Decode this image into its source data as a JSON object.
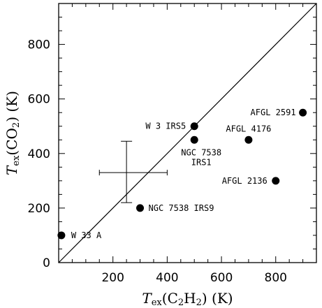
{
  "chart_data": {
    "type": "scatter",
    "xlim": [
      0,
      950
    ],
    "ylim": [
      0,
      950
    ],
    "xticks": [
      200,
      400,
      600,
      800
    ],
    "yticks": [
      0,
      200,
      400,
      600,
      800
    ],
    "xlabel": {
      "italic": "T",
      "sub": "ex",
      "rest": "(C",
      "sub2": "2",
      "mid": "H",
      "sub3": "2",
      "tail": ")  (K)"
    },
    "ylabel": {
      "italic": "T",
      "sub": "ex",
      "rest": "(CO",
      "sub2": "2",
      "tail": ")  (K)"
    },
    "reference_line": {
      "from": [
        0,
        0
      ],
      "to": [
        950,
        950
      ]
    },
    "error_bar": {
      "x": 250,
      "y": 330,
      "xerr": [
        150,
        400
      ],
      "yerr": [
        220,
        445
      ]
    },
    "points": [
      {
        "x": 10,
        "y": 100,
        "label": "W 33 A",
        "label2": ""
      },
      {
        "x": 300,
        "y": 200,
        "label": "NGC 7538 IRS9",
        "label2": ""
      },
      {
        "x": 500,
        "y": 500,
        "label": "W 3 IRS5",
        "label2": ""
      },
      {
        "x": 500,
        "y": 450,
        "label": "NGC 7538",
        "label2": "IRS1"
      },
      {
        "x": 700,
        "y": 450,
        "label": "AFGL 4176",
        "label2": ""
      },
      {
        "x": 800,
        "y": 300,
        "label": "AFGL 2136",
        "label2": ""
      },
      {
        "x": 900,
        "y": 550,
        "label": "AFGL 2591",
        "label2": ""
      }
    ]
  }
}
